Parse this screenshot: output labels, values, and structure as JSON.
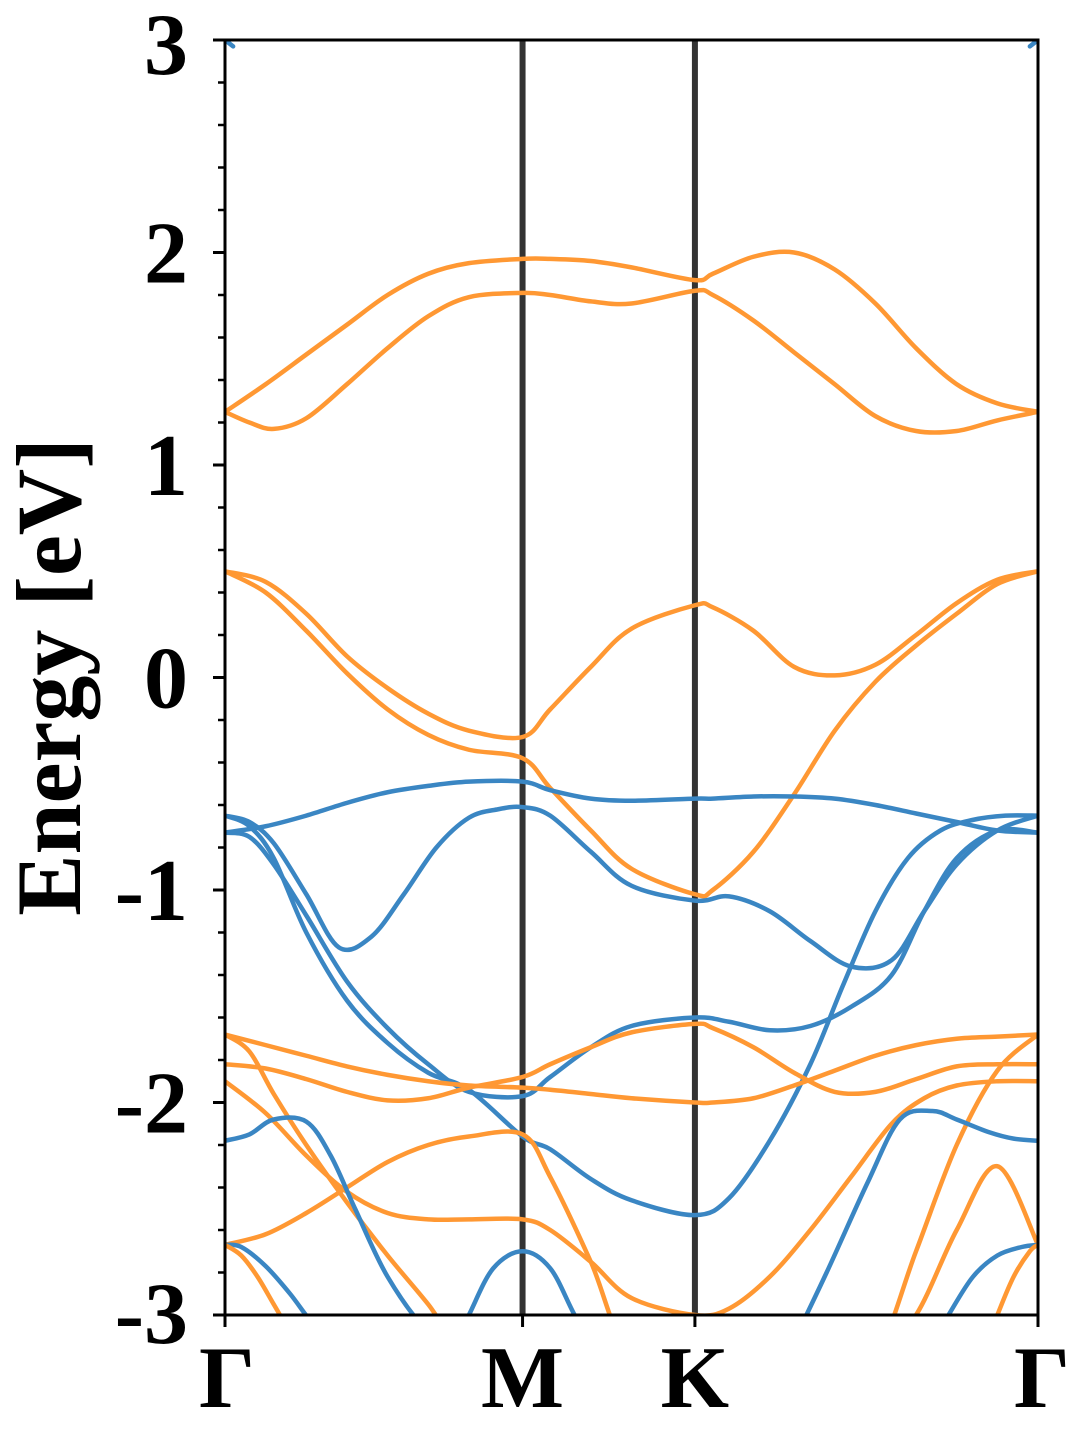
{
  "chart_data": {
    "type": "line",
    "title": "",
    "xlabel": "",
    "ylabel": "Energy [eV]",
    "ylim": [
      -3,
      3
    ],
    "xlim": [
      0,
      1
    ],
    "x_ticks": [
      {
        "label": "Γ",
        "value": 0.0
      },
      {
        "label": "M",
        "value": 0.366
      },
      {
        "label": "K",
        "value": 0.578
      },
      {
        "label": "Γ",
        "value": 1.0
      }
    ],
    "y_ticks": [
      {
        "label": "3",
        "value": 3
      },
      {
        "label": "2",
        "value": 2
      },
      {
        "label": "1",
        "value": 1
      },
      {
        "label": "0",
        "value": 0
      },
      {
        "label": "-1",
        "value": -1
      },
      {
        "label": "-2",
        "value": -2
      },
      {
        "label": "-3",
        "value": -3
      }
    ],
    "y_minor_step": 0.2,
    "vertical_lines_at": [
      0.366,
      0.578
    ],
    "grid": false,
    "legend": "none",
    "colors": {
      "blue": "#3a86c3",
      "orange": "#ff9833",
      "kline": "#333333"
    },
    "series": [
      {
        "color": "orange",
        "x": [
          0,
          0.05,
          0.1,
          0.15,
          0.2,
          0.25,
          0.3,
          0.366,
          0.4,
          0.45,
          0.5,
          0.578,
          0.6,
          0.65,
          0.7,
          0.75,
          0.8,
          0.85,
          0.9,
          0.95,
          1.0
        ],
        "y": [
          1.25,
          1.38,
          1.52,
          1.66,
          1.8,
          1.9,
          1.95,
          1.97,
          1.97,
          1.96,
          1.93,
          1.87,
          1.9,
          1.98,
          2.0,
          1.92,
          1.76,
          1.55,
          1.38,
          1.29,
          1.25
        ]
      },
      {
        "color": "orange",
        "x": [
          0,
          0.03,
          0.06,
          0.1,
          0.15,
          0.2,
          0.25,
          0.3,
          0.366,
          0.4,
          0.45,
          0.5,
          0.578,
          0.6,
          0.65,
          0.7,
          0.75,
          0.8,
          0.85,
          0.9,
          0.95,
          1.0
        ],
        "y": [
          1.25,
          1.2,
          1.17,
          1.22,
          1.38,
          1.55,
          1.7,
          1.79,
          1.81,
          1.8,
          1.77,
          1.76,
          1.82,
          1.8,
          1.68,
          1.53,
          1.38,
          1.23,
          1.16,
          1.16,
          1.21,
          1.25
        ]
      },
      {
        "color": "orange",
        "x": [
          0,
          0.05,
          0.1,
          0.15,
          0.2,
          0.25,
          0.3,
          0.366,
          0.4,
          0.45,
          0.5,
          0.578,
          0.6,
          0.65,
          0.7,
          0.75,
          0.8,
          0.85,
          0.9,
          0.95,
          1.0
        ],
        "y": [
          0.5,
          0.45,
          0.3,
          0.1,
          -0.05,
          -0.17,
          -0.25,
          -0.28,
          -0.15,
          0.05,
          0.23,
          0.34,
          0.33,
          0.22,
          0.05,
          0.01,
          0.06,
          0.2,
          0.35,
          0.46,
          0.5
        ]
      },
      {
        "color": "orange",
        "x": [
          0,
          0.05,
          0.1,
          0.15,
          0.2,
          0.25,
          0.3,
          0.366,
          0.4,
          0.45,
          0.5,
          0.578,
          0.6,
          0.65,
          0.7,
          0.75,
          0.8,
          0.85,
          0.9,
          0.95,
          1.0
        ],
        "y": [
          0.5,
          0.4,
          0.22,
          0.02,
          -0.15,
          -0.27,
          -0.34,
          -0.38,
          -0.52,
          -0.72,
          -0.9,
          -1.02,
          -1.0,
          -0.82,
          -0.55,
          -0.25,
          -0.02,
          0.15,
          0.3,
          0.44,
          0.5
        ]
      },
      {
        "color": "blue",
        "x": [
          0,
          0.05,
          0.1,
          0.15,
          0.2,
          0.25,
          0.3,
          0.366,
          0.4,
          0.45,
          0.5,
          0.578,
          0.6,
          0.65,
          0.7,
          0.75,
          0.8,
          0.85,
          0.9,
          0.95,
          1.0
        ],
        "y": [
          -0.73,
          -0.7,
          -0.65,
          -0.59,
          -0.54,
          -0.51,
          -0.49,
          -0.49,
          -0.53,
          -0.57,
          -0.58,
          -0.57,
          -0.57,
          -0.56,
          -0.56,
          -0.57,
          -0.6,
          -0.64,
          -0.68,
          -0.72,
          -0.73
        ]
      },
      {
        "color": "blue",
        "x": [
          0,
          0.03,
          0.06,
          0.1,
          0.14,
          0.18,
          0.22,
          0.26,
          0.3,
          0.336,
          0.366,
          0.4,
          0.45,
          0.5,
          0.578,
          0.62,
          0.67,
          0.72,
          0.77,
          0.82,
          0.86,
          0.9,
          0.95,
          1.0
        ],
        "y": [
          -0.65,
          -0.68,
          -0.78,
          -1.02,
          -1.27,
          -1.22,
          -1.02,
          -0.8,
          -0.66,
          -0.62,
          -0.61,
          -0.65,
          -0.82,
          -0.98,
          -1.05,
          -1.03,
          -1.1,
          -1.24,
          -1.36,
          -1.33,
          -1.1,
          -0.88,
          -0.72,
          -0.65
        ]
      },
      {
        "color": "blue",
        "x": [
          0,
          0.03,
          0.06,
          0.1,
          0.15,
          0.2,
          0.25,
          0.3,
          0.366,
          0.4,
          0.45,
          0.5,
          0.578,
          0.62,
          0.67,
          0.72,
          0.77,
          0.82,
          0.86,
          0.9,
          0.95,
          1.0
        ],
        "y": [
          -0.73,
          -0.75,
          -0.88,
          -1.12,
          -1.43,
          -1.65,
          -1.82,
          -1.95,
          -1.97,
          -1.88,
          -1.74,
          -1.64,
          -1.6,
          -1.62,
          -1.66,
          -1.64,
          -1.55,
          -1.4,
          -1.1,
          -0.85,
          -0.72,
          -0.73
        ]
      },
      {
        "color": "blue",
        "x": [
          0,
          0.03,
          0.06,
          0.1,
          0.15,
          0.2,
          0.25,
          0.3,
          0.366,
          0.4,
          0.45,
          0.5,
          0.578,
          0.62,
          0.67,
          0.72,
          0.76,
          0.8,
          0.84,
          0.88,
          0.92,
          0.96,
          1.0
        ],
        "y": [
          -0.65,
          -0.7,
          -0.85,
          -1.2,
          -1.52,
          -1.72,
          -1.86,
          -1.94,
          -2.16,
          -2.22,
          -2.36,
          -2.46,
          -2.53,
          -2.45,
          -2.18,
          -1.82,
          -1.45,
          -1.1,
          -0.85,
          -0.72,
          -0.67,
          -0.65,
          -0.65
        ]
      },
      {
        "color": "orange",
        "x": [
          0,
          0.05,
          0.1,
          0.15,
          0.2,
          0.25,
          0.3,
          0.366,
          0.4,
          0.45,
          0.5,
          0.578,
          0.6,
          0.65,
          0.7,
          0.75,
          0.8,
          0.85,
          0.9,
          0.95,
          1.0
        ],
        "y": [
          -1.68,
          -1.73,
          -1.78,
          -1.83,
          -1.87,
          -1.9,
          -1.92,
          -1.93,
          -1.94,
          -1.96,
          -1.98,
          -2.0,
          -2.0,
          -1.98,
          -1.92,
          -1.85,
          -1.78,
          -1.73,
          -1.7,
          -1.69,
          -1.68
        ]
      },
      {
        "color": "orange",
        "x": [
          0,
          0.05,
          0.1,
          0.15,
          0.2,
          0.25,
          0.3,
          0.366,
          0.4,
          0.45,
          0.5,
          0.578,
          0.6,
          0.65,
          0.7,
          0.75,
          0.8,
          0.85,
          0.9,
          0.95,
          1.0
        ],
        "y": [
          -1.82,
          -1.84,
          -1.89,
          -1.95,
          -1.99,
          -1.98,
          -1.93,
          -1.88,
          -1.82,
          -1.74,
          -1.67,
          -1.63,
          -1.65,
          -1.74,
          -1.86,
          -1.95,
          -1.95,
          -1.89,
          -1.83,
          -1.82,
          -1.82
        ]
      },
      {
        "color": "orange",
        "x": [
          0,
          0.05,
          0.1,
          0.15,
          0.2,
          0.25,
          0.3,
          0.366,
          0.4,
          0.45,
          0.5,
          0.578,
          0.62,
          0.67,
          0.72,
          0.77,
          0.82,
          0.86,
          0.9,
          0.95,
          1.0
        ],
        "y": [
          -1.9,
          -2.05,
          -2.25,
          -2.42,
          -2.52,
          -2.55,
          -2.55,
          -2.55,
          -2.6,
          -2.75,
          -2.92,
          -3.0,
          -2.97,
          -2.82,
          -2.6,
          -2.35,
          -2.1,
          -1.98,
          -1.92,
          -1.9,
          -1.9
        ]
      },
      {
        "color": "orange",
        "x": [
          0,
          0.03,
          0.06,
          0.1,
          0.15,
          0.2,
          0.25,
          0.3,
          0.366,
          0.4,
          0.45,
          0.5,
          0.55,
          0.6,
          0.65,
          0.7,
          0.75,
          0.8,
          0.85,
          0.9,
          0.95,
          1.0
        ],
        "y": [
          -1.68,
          -1.76,
          -1.96,
          -2.2,
          -2.47,
          -2.72,
          -2.95,
          -3.2,
          -3.2,
          -3.2,
          -3.2,
          -3.2,
          -3.2,
          -3.2,
          -3.2,
          -3.2,
          -3.2,
          -3.2,
          -2.7,
          -2.2,
          -1.85,
          -1.68
        ]
      },
      {
        "color": "orange",
        "x": [
          0,
          0.05,
          0.1,
          0.15,
          0.2,
          0.25,
          0.3,
          0.366,
          0.4,
          0.45,
          0.5,
          0.578,
          0.6,
          0.65,
          0.7,
          0.75,
          0.8,
          0.85,
          0.9,
          0.95,
          1.0
        ],
        "y": [
          -2.67,
          -2.62,
          -2.52,
          -2.4,
          -2.28,
          -2.2,
          -2.16,
          -2.15,
          -2.35,
          -2.75,
          -3.2,
          -3.2,
          -3.2,
          -3.2,
          -3.2,
          -3.2,
          -3.2,
          -3.0,
          -2.6,
          -2.3,
          -2.67
        ]
      },
      {
        "color": "blue",
        "x": [
          0,
          0.03,
          0.06,
          0.1,
          0.13,
          0.16,
          0.2,
          0.25,
          0.3,
          0.33
        ],
        "y": [
          -2.18,
          -2.15,
          -2.08,
          -2.09,
          -2.25,
          -2.5,
          -2.82,
          -3.08,
          -3.2,
          -3.2
        ]
      },
      {
        "color": "blue",
        "x": [
          0.69,
          0.74,
          0.79,
          0.83,
          0.87,
          0.9,
          0.94,
          0.97,
          1.0
        ],
        "y": [
          -3.2,
          -2.8,
          -2.38,
          -2.08,
          -2.04,
          -2.08,
          -2.14,
          -2.17,
          -2.18
        ]
      },
      {
        "color": "blue",
        "x": [
          0,
          0.02,
          0.05,
          0.08,
          0.11,
          0.14,
          0.16
        ],
        "y": [
          -2.67,
          -2.68,
          -2.77,
          -2.9,
          -3.05,
          -3.15,
          -3.2
        ]
      },
      {
        "color": "blue",
        "x": [
          0.86,
          0.89,
          0.92,
          0.95,
          0.98,
          1.0
        ],
        "y": [
          -3.2,
          -3.0,
          -2.82,
          -2.72,
          -2.68,
          -2.67
        ]
      },
      {
        "color": "blue",
        "x": [
          0.275,
          0.3,
          0.33,
          0.366,
          0.4,
          0.43,
          0.46
        ],
        "y": [
          -3.2,
          -3.0,
          -2.78,
          -2.7,
          -2.78,
          -3.0,
          -3.2
        ]
      },
      {
        "color": "orange",
        "x": [
          0,
          0.02,
          0.04,
          0.06,
          0.08,
          0.1
        ],
        "y": [
          -2.67,
          -2.72,
          -2.82,
          -2.95,
          -3.08,
          -3.2
        ]
      },
      {
        "color": "orange",
        "x": [
          0.93,
          0.95,
          0.97,
          0.99,
          1.0
        ],
        "y": [
          -3.2,
          -3.0,
          -2.82,
          -2.7,
          -2.67
        ]
      },
      {
        "color": "blue",
        "x": [
          0,
          0.01
        ],
        "y": [
          3.0,
          2.97
        ]
      },
      {
        "color": "blue",
        "x": [
          0.99,
          1.0
        ],
        "y": [
          2.97,
          3.0
        ]
      }
    ]
  }
}
